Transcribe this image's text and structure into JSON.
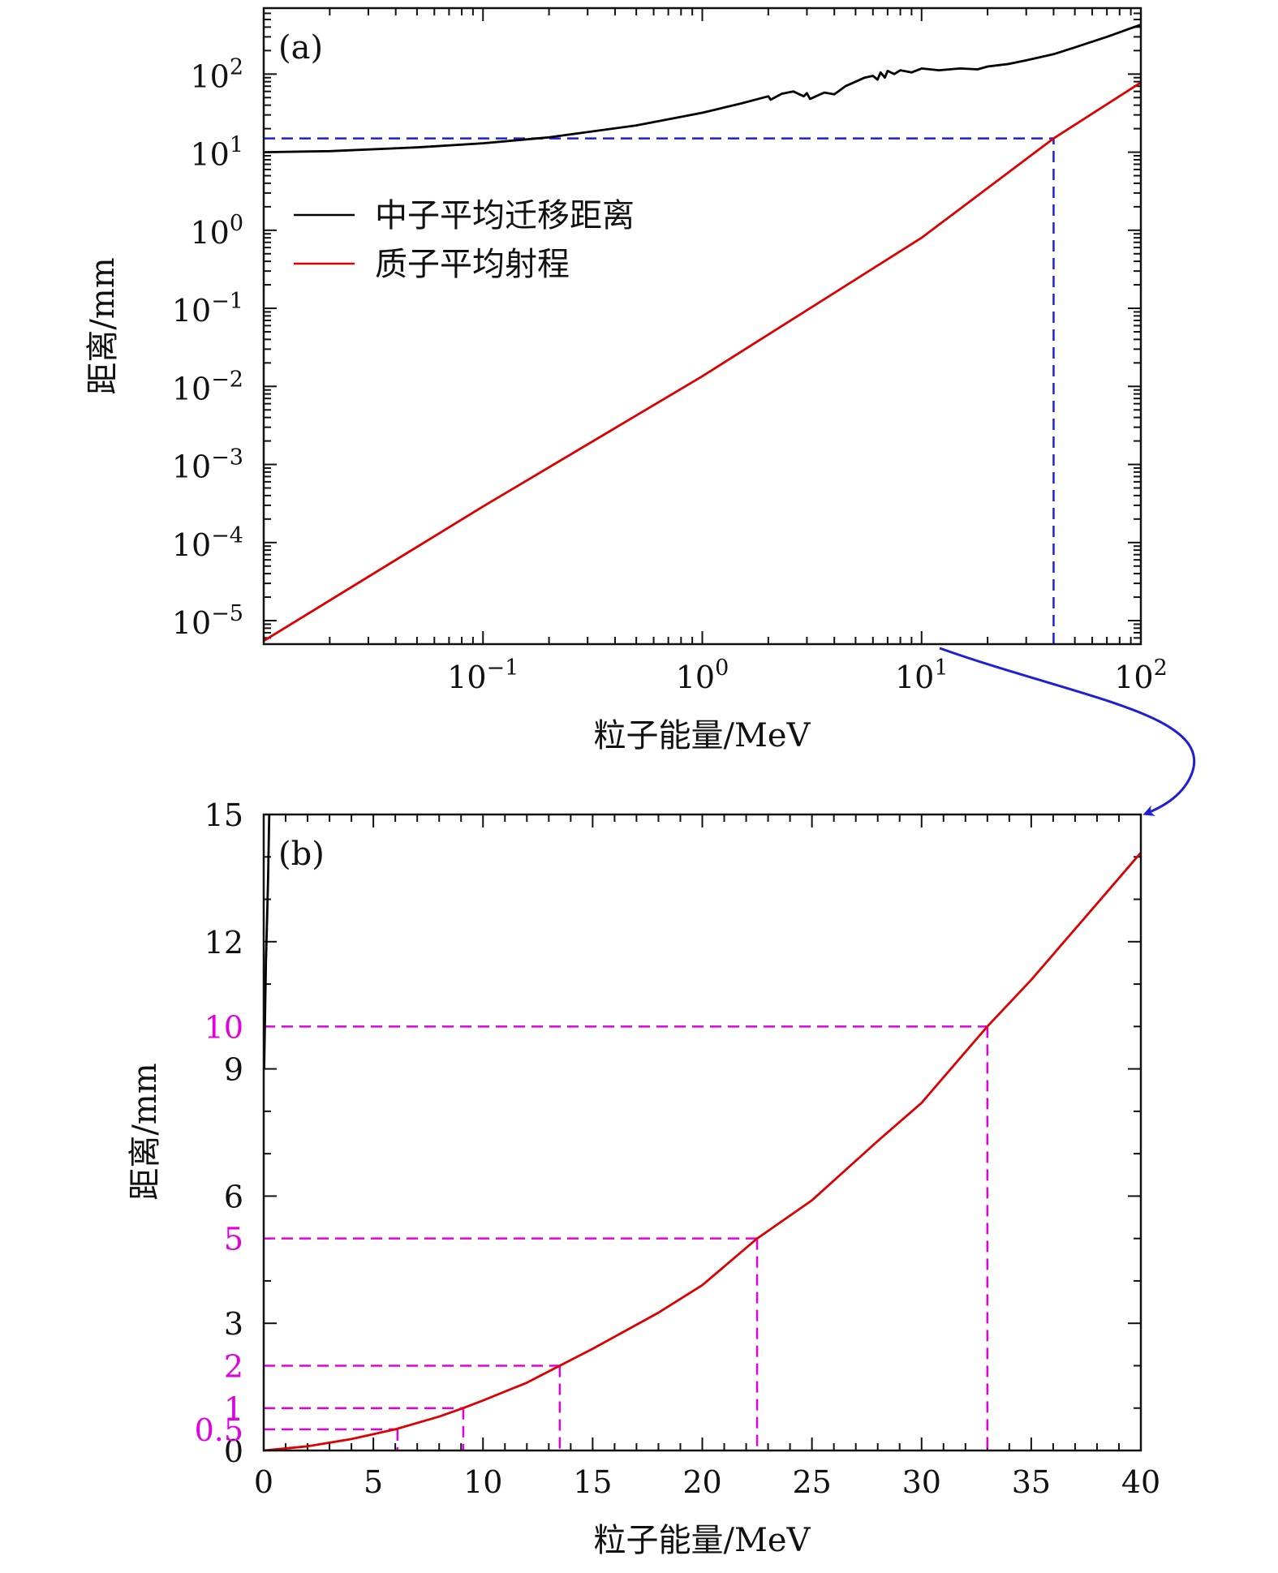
{
  "colors": {
    "neutron": "#000000",
    "proton": "#dd0000",
    "ref_blue": "#1f1fd6",
    "ref_magenta": "#e000e0",
    "arrow": "#1f1fd6"
  },
  "chart_data": [
    {
      "panel": "(a)",
      "type": "line",
      "xscale": "log",
      "yscale": "log",
      "xlabel": "粒子能量/MeV",
      "ylabel": "距离/mm",
      "xlim": [
        0.01,
        100
      ],
      "ylim": [
        5e-06,
        700
      ],
      "xticks": [
        {
          "value": 0.1,
          "base": "10",
          "exp": "−1"
        },
        {
          "value": 1,
          "base": "10",
          "exp": "0"
        },
        {
          "value": 10,
          "base": "10",
          "exp": "1"
        },
        {
          "value": 100,
          "base": "10",
          "exp": "2"
        }
      ],
      "yticks": [
        {
          "value": 1e-05,
          "base": "10",
          "exp": "−5"
        },
        {
          "value": 0.0001,
          "base": "10",
          "exp": "−4"
        },
        {
          "value": 0.001,
          "base": "10",
          "exp": "−3"
        },
        {
          "value": 0.01,
          "base": "10",
          "exp": "−2"
        },
        {
          "value": 0.1,
          "base": "10",
          "exp": "−1"
        },
        {
          "value": 1,
          "base": "10",
          "exp": "0"
        },
        {
          "value": 10,
          "base": "10",
          "exp": "1"
        },
        {
          "value": 100,
          "base": "10",
          "exp": "2"
        }
      ],
      "legend_position": "upper-left",
      "series": [
        {
          "name": "中子平均迁移距离",
          "color": "#000000",
          "x": [
            0.01,
            0.02,
            0.05,
            0.1,
            0.2,
            0.5,
            1,
            1.5,
            2,
            2.05,
            2.3,
            2.6,
            2.9,
            3.0,
            3.1,
            3.3,
            3.6,
            4.0,
            4.5,
            5.0,
            5.5,
            6.0,
            6.3,
            6.5,
            6.8,
            7.0,
            7.5,
            8.0,
            9.0,
            10,
            12,
            15,
            18,
            20,
            25,
            30,
            40,
            50,
            70,
            100
          ],
          "y": [
            10,
            10.3,
            11.5,
            13,
            15.5,
            22,
            32,
            42,
            52,
            47,
            56,
            60,
            52,
            57,
            48,
            52,
            58,
            55,
            70,
            80,
            90,
            95,
            85,
            105,
            90,
            110,
            100,
            112,
            105,
            118,
            112,
            118,
            115,
            125,
            135,
            150,
            180,
            220,
            300,
            430
          ]
        },
        {
          "name": "质子平均射程",
          "color": "#dd0000",
          "x": [
            0.01,
            0.1,
            1,
            10,
            40,
            100
          ],
          "y": [
            5.5e-06,
            0.00029,
            0.0135,
            0.8,
            15,
            78
          ]
        }
      ],
      "reference_lines": [
        {
          "kind": "horizontal",
          "y": 15,
          "x_from": 0.01,
          "x_to": 40,
          "style": "dashed",
          "color": "#1f1fd6"
        },
        {
          "kind": "vertical",
          "x": 40,
          "y_from": 5e-06,
          "y_to": 15,
          "style": "dashed",
          "color": "#1f1fd6"
        }
      ]
    },
    {
      "panel": "(b)",
      "type": "line",
      "xscale": "linear",
      "yscale": "linear",
      "xlabel": "粒子能量/MeV",
      "ylabel": "距离/mm",
      "xlim": [
        0,
        40
      ],
      "ylim": [
        0,
        15
      ],
      "xticks": [
        "0",
        "5",
        "10",
        "15",
        "20",
        "25",
        "30",
        "35",
        "40"
      ],
      "yticks": [
        {
          "value": 0,
          "label": "0",
          "color": "#111111"
        },
        {
          "value": 0.5,
          "label": "0.5",
          "color": "#e000e0"
        },
        {
          "value": 1,
          "label": "1",
          "color": "#e000e0"
        },
        {
          "value": 2,
          "label": "2",
          "color": "#e000e0"
        },
        {
          "value": 3,
          "label": "3",
          "color": "#111111"
        },
        {
          "value": 5,
          "label": "5",
          "color": "#e000e0"
        },
        {
          "value": 6,
          "label": "6",
          "color": "#111111"
        },
        {
          "value": 9,
          "label": "9",
          "color": "#111111"
        },
        {
          "value": 10,
          "label": "10",
          "color": "#e000e0"
        },
        {
          "value": 12,
          "label": "12",
          "color": "#111111"
        },
        {
          "value": 15,
          "label": "15",
          "color": "#111111"
        }
      ],
      "series": [
        {
          "name": "中子平均迁移距离",
          "color": "#000000",
          "x": [
            0.02,
            0.05,
            0.1,
            0.15,
            0.2,
            0.25
          ],
          "y": [
            9.0,
            10.0,
            11.5,
            12.5,
            13.5,
            15.0
          ]
        },
        {
          "name": "质子平均射程",
          "color": "#dd0000",
          "x": [
            0,
            2,
            4,
            6,
            8,
            9.1,
            10,
            12,
            13.5,
            15,
            18,
            20,
            22.5,
            25,
            28,
            30,
            33,
            35,
            38,
            40
          ],
          "y": [
            0,
            0.1,
            0.27,
            0.5,
            0.8,
            1.0,
            1.18,
            1.6,
            2.0,
            2.4,
            3.25,
            3.9,
            5.0,
            5.9,
            7.3,
            8.2,
            10.0,
            11.1,
            12.9,
            14.1
          ]
        }
      ],
      "reference_lines": [
        {
          "y": 0.5,
          "x": 6.1,
          "color": "#e000e0",
          "style": "dashed"
        },
        {
          "y": 1,
          "x": 9.1,
          "color": "#e000e0",
          "style": "dashed"
        },
        {
          "y": 2,
          "x": 13.5,
          "color": "#e000e0",
          "style": "dashed"
        },
        {
          "y": 5,
          "x": 22.5,
          "color": "#e000e0",
          "style": "dashed"
        },
        {
          "y": 10,
          "x": 33.0,
          "color": "#e000e0",
          "style": "dashed"
        }
      ]
    }
  ]
}
